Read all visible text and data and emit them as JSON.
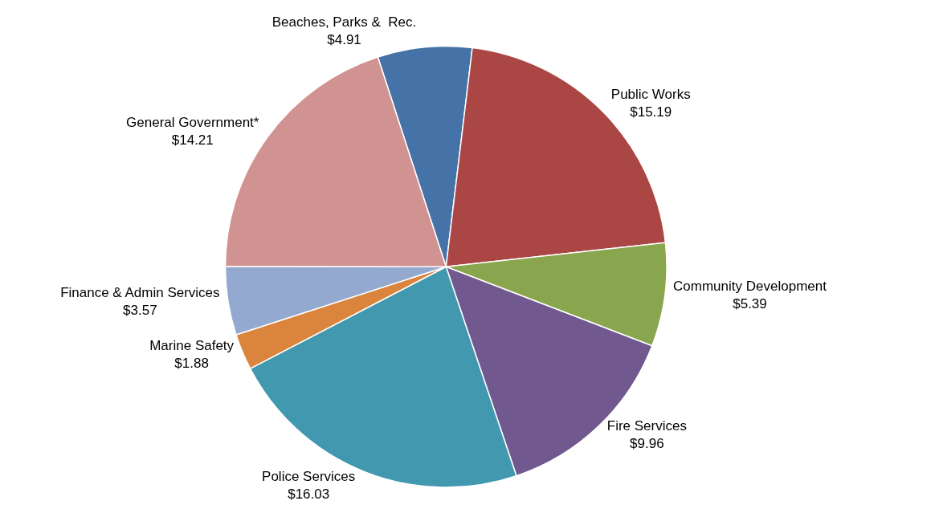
{
  "chart_data": {
    "type": "pie",
    "categories": [
      "Beaches, Parks &  Rec.",
      "Public Works",
      "Community Development",
      "Fire Services",
      "Police Services",
      "Marine Safety",
      "Finance & Admin Services",
      "General Government*"
    ],
    "values": [
      4.91,
      15.19,
      5.39,
      9.96,
      16.03,
      1.88,
      3.57,
      14.21
    ],
    "value_labels": [
      "$4.91",
      "$15.19",
      "$5.39",
      "$9.96",
      "$16.03",
      "$1.88",
      "$3.57",
      "$14.21"
    ],
    "colors": [
      "#4572a7",
      "#aa4643",
      "#89a54e",
      "#71588f",
      "#4198af",
      "#db843d",
      "#93a9cf",
      "#d19392"
    ],
    "legend": false
  }
}
